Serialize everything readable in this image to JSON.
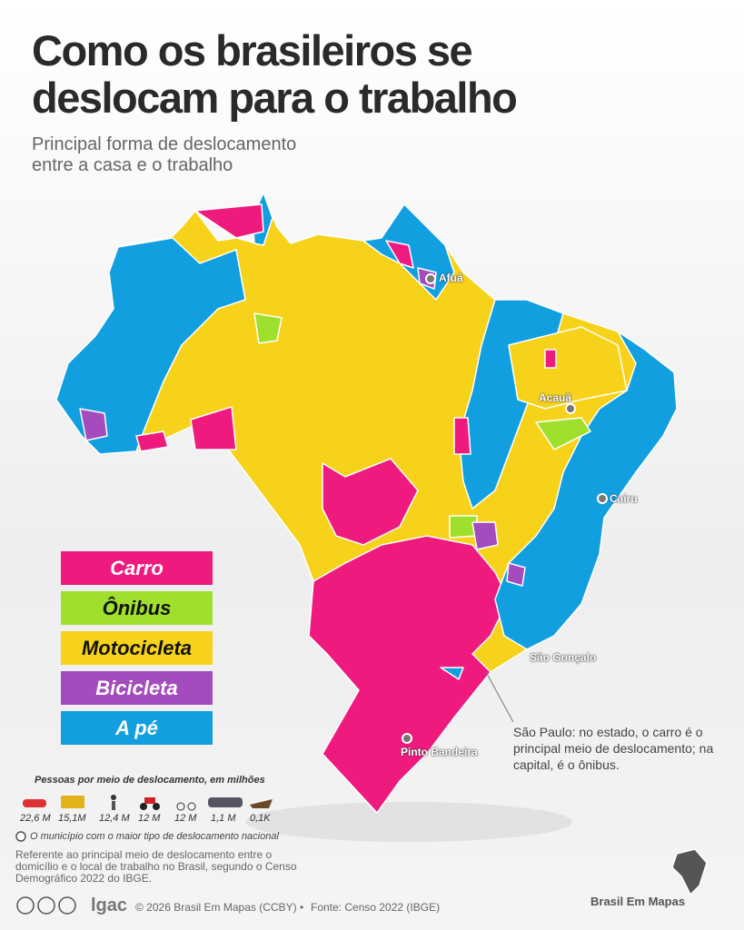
{
  "title": [
    "Como os brasileiros se",
    "deslocam para o trabalho"
  ],
  "subtitle": [
    "Principal forma de deslocamento",
    "entre a casa e o trabalho"
  ],
  "legend": [
    {
      "label": "Carro",
      "color": "#ef1a7d"
    },
    {
      "label": "Ônibus",
      "color": "#9fe02e"
    },
    {
      "label": "Motocicleta",
      "color": "#f7d21a"
    },
    {
      "label": "Bicicleta",
      "color": "#a44bbd"
    },
    {
      "label": "A pé",
      "color": "#129fe0"
    }
  ],
  "stats_title": "Pessoas por meio de deslocamento, em milhões",
  "stats": [
    "22,6 M",
    "15,1M",
    "12,4 M",
    "12 M",
    "12 M",
    "1,1 M",
    "0,1K"
  ],
  "marker_note": "O município com o maior tipo de deslocamento nacional",
  "source_note": "Referente ao principal meio de deslocamento entre o domicílio e o local de trabalho no Brasil, segundo o Censo Demográfico 2022 do IBGE.",
  "cities": [
    "Afuá",
    "Acauã",
    "Cairu",
    "São Gonçalo",
    "Pinto Bandeira"
  ],
  "annotation": "São Paulo: no estado, o carro é o principal meio de deslocamento; na capital, é o ônibus.",
  "footer": {
    "logo": "lgac",
    "copyright": "© 2026 Brasil Em Mapas (CCBY)",
    "separator": "•",
    "source": "Fonte: Censo 2022 (IBGE)"
  },
  "brand": "Brasil Em Mapas"
}
